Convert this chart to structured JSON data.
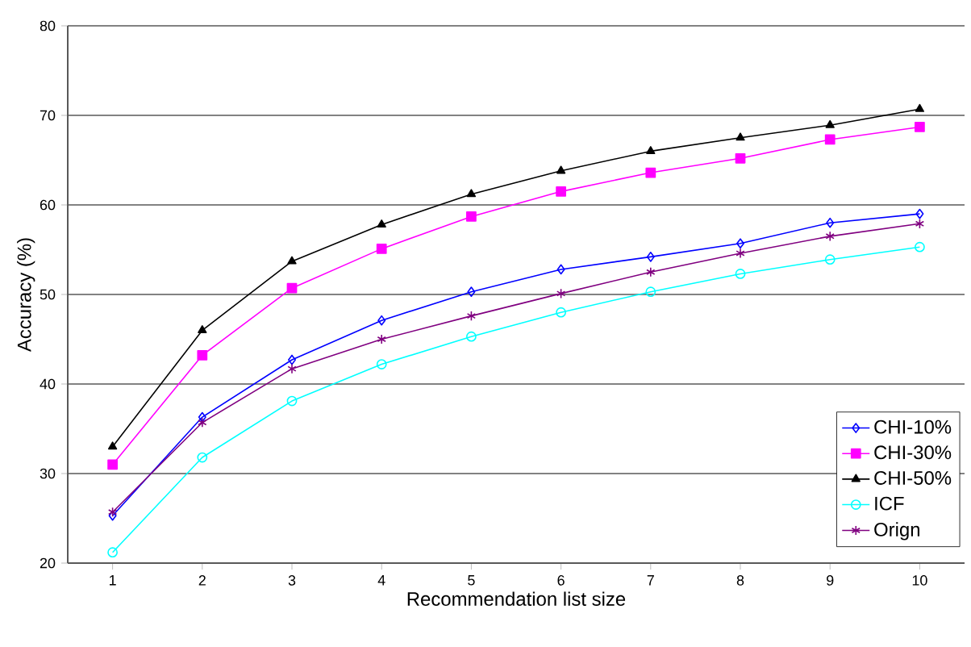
{
  "chart_data": {
    "type": "line",
    "xlabel": "Recommendation list size",
    "ylabel": "Accuracy (%)",
    "x": [
      1,
      2,
      3,
      4,
      5,
      6,
      7,
      8,
      9,
      10
    ],
    "xlim": [
      0.5,
      10.5
    ],
    "xticks": [
      1,
      2,
      3,
      4,
      5,
      6,
      7,
      8,
      9,
      10
    ],
    "ylim": [
      20,
      80
    ],
    "yticks": [
      20,
      30,
      40,
      50,
      60,
      70,
      80
    ],
    "grid": "y",
    "legend": "bottom right",
    "series": [
      {
        "name": "CHI-10%",
        "color": "#0000ff",
        "marker": "diamond",
        "values": [
          25.3,
          36.3,
          42.7,
          47.1,
          50.3,
          52.8,
          54.2,
          55.7,
          58.0,
          59.0
        ]
      },
      {
        "name": "CHI-30%",
        "color": "#ff00ff",
        "marker": "square",
        "values": [
          31.0,
          43.2,
          50.7,
          55.1,
          58.7,
          61.5,
          63.6,
          65.2,
          67.3,
          68.7
        ]
      },
      {
        "name": "CHI-50%",
        "color": "#000000",
        "marker": "triangle",
        "values": [
          33.0,
          46.0,
          53.7,
          57.8,
          61.2,
          63.8,
          66.0,
          67.5,
          68.9,
          70.7
        ]
      },
      {
        "name": "ICF",
        "color": "#00ffff",
        "marker": "circle",
        "values": [
          21.2,
          31.8,
          38.1,
          42.2,
          45.3,
          48.0,
          50.3,
          52.3,
          53.9,
          55.3
        ]
      },
      {
        "name": "Orign",
        "color": "#800080",
        "marker": "cross",
        "values": [
          25.7,
          35.7,
          41.7,
          45.0,
          47.6,
          50.1,
          52.5,
          54.6,
          56.5,
          57.9
        ]
      }
    ]
  }
}
